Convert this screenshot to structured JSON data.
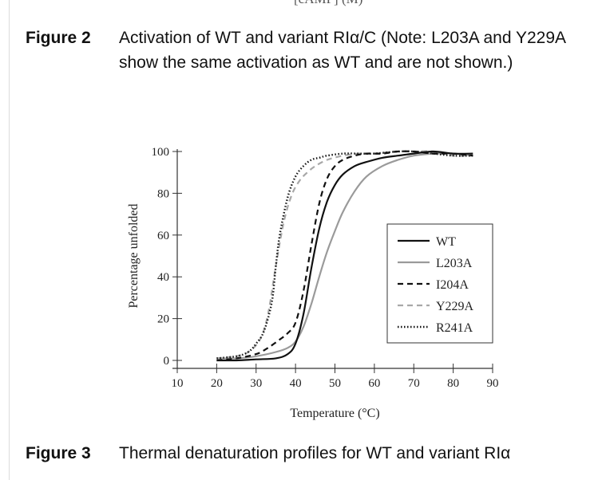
{
  "top_cut_text": "[cAMP] (M)",
  "figure2": {
    "label": "Figure 2",
    "text": "Activation of WT and variant RIα/C (Note: L203A and Y229A show the same activation as WT and are not shown.)"
  },
  "figure3": {
    "label": "Figure 3",
    "text": "Thermal denaturation profiles for WT and variant RIα"
  },
  "chart_data": {
    "type": "line",
    "title": "",
    "xlabel": "Temperature (°C)",
    "ylabel": "Percentage unfolded",
    "xlim": [
      10,
      90
    ],
    "ylim": [
      0,
      100
    ],
    "xticks": [
      10,
      20,
      30,
      40,
      50,
      60,
      70,
      80,
      90
    ],
    "yticks": [
      0,
      20,
      40,
      60,
      80,
      100
    ],
    "legend_position": "center-right",
    "series": [
      {
        "name": "WT",
        "style": "solid-black",
        "x": [
          20,
          25,
          30,
          35,
          38,
          40,
          42,
          44,
          46,
          48,
          50,
          52,
          55,
          58,
          62,
          66,
          70,
          75,
          80,
          85
        ],
        "y": [
          0,
          0,
          0.5,
          1,
          3,
          8,
          22,
          44,
          63,
          76,
          84,
          89,
          93,
          95,
          97,
          98,
          99,
          100,
          99,
          99
        ]
      },
      {
        "name": "L203A",
        "style": "solid-gray",
        "x": [
          20,
          25,
          30,
          35,
          38,
          40,
          42,
          44,
          46,
          48,
          50,
          52,
          55,
          58,
          62,
          66,
          70,
          75,
          80,
          85
        ],
        "y": [
          1,
          1,
          2,
          4,
          6,
          9,
          16,
          27,
          40,
          52,
          62,
          71,
          81,
          88,
          93,
          96,
          98,
          99,
          99,
          98
        ]
      },
      {
        "name": "I204A",
        "style": "dashed-black",
        "x": [
          20,
          25,
          30,
          33,
          36,
          38,
          40,
          42,
          44,
          46,
          48,
          50,
          52,
          55,
          58,
          62,
          66,
          70,
          75,
          80,
          85
        ],
        "y": [
          0,
          1,
          3,
          6,
          10,
          13,
          18,
          33,
          55,
          75,
          87,
          93,
          96,
          98,
          99,
          99,
          100,
          100,
          99,
          99,
          98
        ]
      },
      {
        "name": "Y229A",
        "style": "dashed-gray",
        "x": [
          20,
          25,
          28,
          31,
          33,
          35,
          37,
          39,
          41,
          43,
          45,
          48,
          52,
          56,
          60,
          65,
          70,
          75,
          80,
          85
        ],
        "y": [
          1,
          2,
          4,
          10,
          22,
          45,
          66,
          79,
          86,
          90,
          93,
          96,
          98,
          99,
          99,
          100,
          100,
          100,
          98,
          98
        ]
      },
      {
        "name": "R241A",
        "style": "dotted-black",
        "x": [
          20,
          25,
          28,
          30,
          32,
          34,
          35,
          36,
          38,
          40,
          42,
          44,
          46,
          48,
          52,
          56,
          60,
          66,
          70,
          75,
          80,
          85
        ],
        "y": [
          1,
          2,
          4,
          8,
          14,
          28,
          45,
          60,
          78,
          88,
          93,
          96,
          97,
          98,
          99,
          99,
          99,
          100,
          100,
          99,
          98,
          98
        ]
      }
    ]
  }
}
